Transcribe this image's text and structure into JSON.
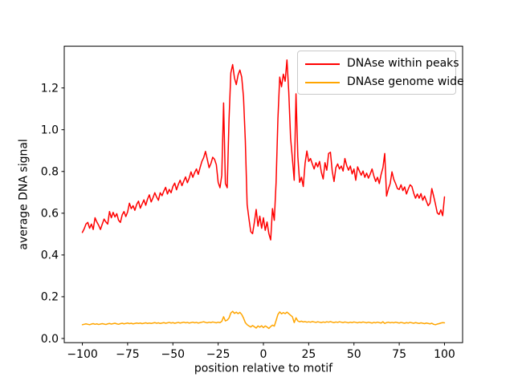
{
  "figure": {
    "background": "#ffffff"
  },
  "chart_data": {
    "type": "line",
    "xlabel": "position relative to motif",
    "ylabel": "average DNA signal",
    "xlim": [
      -110,
      110
    ],
    "ylim": [
      -0.02,
      1.4
    ],
    "grid": false,
    "xticks": [
      -100,
      -75,
      -50,
      -25,
      0,
      25,
      50,
      75,
      100
    ],
    "xtick_labels": [
      "−100",
      "−75",
      "−50",
      "−25",
      "0",
      "25",
      "50",
      "75",
      "100"
    ],
    "yticks": [
      0.0,
      0.2,
      0.4,
      0.6,
      0.8,
      1.0,
      1.2
    ],
    "ytick_labels": [
      "0.0",
      "0.2",
      "0.4",
      "0.6",
      "0.8",
      "1.0",
      "1.2"
    ],
    "legend": {
      "position": "upper right",
      "entries": [
        {
          "label": "DNAse within peaks",
          "color": "#ff0000"
        },
        {
          "label": "DNAse genome wide",
          "color": "#ffa500"
        }
      ]
    },
    "x": [
      -100,
      -99,
      -98,
      -97,
      -96,
      -95,
      -94,
      -93,
      -92,
      -91,
      -90,
      -89,
      -88,
      -87,
      -86,
      -85,
      -84,
      -83,
      -82,
      -81,
      -80,
      -79,
      -78,
      -77,
      -76,
      -75,
      -74,
      -73,
      -72,
      -71,
      -70,
      -69,
      -68,
      -67,
      -66,
      -65,
      -64,
      -63,
      -62,
      -61,
      -60,
      -59,
      -58,
      -57,
      -56,
      -55,
      -54,
      -53,
      -52,
      -51,
      -50,
      -49,
      -48,
      -47,
      -46,
      -45,
      -44,
      -43,
      -42,
      -41,
      -40,
      -39,
      -38,
      -37,
      -36,
      -35,
      -34,
      -33,
      -32,
      -31,
      -30,
      -29,
      -28,
      -27,
      -26,
      -25,
      -24,
      -23,
      -22,
      -21,
      -20,
      -19,
      -18,
      -17,
      -16,
      -15,
      -14,
      -13,
      -12,
      -11,
      -10,
      -9,
      -8,
      -7,
      -6,
      -5,
      -4,
      -3,
      -2,
      -1,
      0,
      1,
      2,
      3,
      4,
      5,
      6,
      7,
      8,
      9,
      10,
      11,
      12,
      13,
      14,
      15,
      16,
      17,
      18,
      19,
      20,
      21,
      22,
      23,
      24,
      25,
      26,
      27,
      28,
      29,
      30,
      31,
      32,
      33,
      34,
      35,
      36,
      37,
      38,
      39,
      40,
      41,
      42,
      43,
      44,
      45,
      46,
      47,
      48,
      49,
      50,
      51,
      52,
      53,
      54,
      55,
      56,
      57,
      58,
      59,
      60,
      61,
      62,
      63,
      64,
      65,
      66,
      67,
      68,
      69,
      70,
      71,
      72,
      73,
      74,
      75,
      76,
      77,
      78,
      79,
      80,
      81,
      82,
      83,
      84,
      85,
      86,
      87,
      88,
      89,
      90,
      91,
      92,
      93,
      94,
      95,
      96,
      97,
      98,
      99,
      100
    ],
    "series": [
      {
        "name": "DNAse within peaks",
        "color": "#ff0000",
        "values": [
          0.508,
          0.525,
          0.548,
          0.556,
          0.528,
          0.548,
          0.522,
          0.578,
          0.558,
          0.542,
          0.522,
          0.548,
          0.572,
          0.558,
          0.548,
          0.608,
          0.578,
          0.604,
          0.582,
          0.598,
          0.566,
          0.556,
          0.592,
          0.608,
          0.584,
          0.606,
          0.648,
          0.622,
          0.636,
          0.614,
          0.642,
          0.658,
          0.624,
          0.644,
          0.664,
          0.638,
          0.668,
          0.688,
          0.654,
          0.674,
          0.698,
          0.678,
          0.662,
          0.698,
          0.684,
          0.706,
          0.724,
          0.692,
          0.714,
          0.698,
          0.728,
          0.744,
          0.712,
          0.738,
          0.758,
          0.732,
          0.754,
          0.774,
          0.746,
          0.768,
          0.798,
          0.772,
          0.794,
          0.812,
          0.786,
          0.818,
          0.848,
          0.866,
          0.896,
          0.858,
          0.818,
          0.838,
          0.868,
          0.858,
          0.832,
          0.748,
          0.722,
          0.782,
          1.128,
          0.742,
          0.722,
          1.048,
          1.272,
          1.312,
          1.248,
          1.216,
          1.262,
          1.286,
          1.252,
          1.156,
          0.948,
          0.642,
          0.574,
          0.512,
          0.502,
          0.556,
          0.618,
          0.538,
          0.586,
          0.528,
          0.578,
          0.518,
          0.558,
          0.502,
          0.472,
          0.622,
          0.566,
          0.748,
          1.052,
          1.252,
          1.206,
          1.266,
          1.232,
          1.334,
          1.18,
          0.96,
          0.862,
          0.758,
          1.172,
          0.872,
          0.748,
          0.772,
          0.728,
          0.838,
          0.898,
          0.848,
          0.862,
          0.836,
          0.812,
          0.842,
          0.822,
          0.848,
          0.796,
          0.764,
          0.842,
          0.806,
          0.886,
          0.892,
          0.802,
          0.752,
          0.818,
          0.836,
          0.812,
          0.826,
          0.802,
          0.862,
          0.828,
          0.806,
          0.826,
          0.788,
          0.812,
          0.758,
          0.822,
          0.802,
          0.782,
          0.802,
          0.772,
          0.792,
          0.768,
          0.788,
          0.812,
          0.778,
          0.752,
          0.772,
          0.742,
          0.786,
          0.818,
          0.886,
          0.682,
          0.716,
          0.742,
          0.798,
          0.762,
          0.742,
          0.718,
          0.714,
          0.736,
          0.708,
          0.726,
          0.692,
          0.716,
          0.736,
          0.728,
          0.696,
          0.672,
          0.692,
          0.672,
          0.694,
          0.662,
          0.682,
          0.658,
          0.636,
          0.648,
          0.718,
          0.682,
          0.644,
          0.602,
          0.594,
          0.616,
          0.588,
          0.678
        ]
      },
      {
        "name": "DNAse genome wide",
        "color": "#ffa500",
        "values": [
          0.066,
          0.068,
          0.07,
          0.068,
          0.066,
          0.069,
          0.071,
          0.068,
          0.07,
          0.067,
          0.069,
          0.071,
          0.069,
          0.067,
          0.07,
          0.072,
          0.069,
          0.071,
          0.073,
          0.07,
          0.068,
          0.071,
          0.073,
          0.07,
          0.072,
          0.074,
          0.071,
          0.073,
          0.07,
          0.072,
          0.074,
          0.072,
          0.074,
          0.071,
          0.073,
          0.075,
          0.072,
          0.074,
          0.072,
          0.074,
          0.076,
          0.073,
          0.075,
          0.072,
          0.074,
          0.076,
          0.073,
          0.075,
          0.077,
          0.074,
          0.076,
          0.073,
          0.075,
          0.077,
          0.074,
          0.076,
          0.078,
          0.075,
          0.077,
          0.074,
          0.076,
          0.078,
          0.075,
          0.077,
          0.074,
          0.076,
          0.078,
          0.08,
          0.077,
          0.075,
          0.078,
          0.076,
          0.079,
          0.077,
          0.075,
          0.078,
          0.076,
          0.082,
          0.104,
          0.084,
          0.088,
          0.098,
          0.122,
          0.13,
          0.12,
          0.126,
          0.119,
          0.125,
          0.115,
          0.098,
          0.076,
          0.066,
          0.06,
          0.055,
          0.062,
          0.056,
          0.05,
          0.06,
          0.054,
          0.061,
          0.052,
          0.06,
          0.055,
          0.048,
          0.057,
          0.064,
          0.059,
          0.086,
          0.115,
          0.127,
          0.118,
          0.124,
          0.119,
          0.126,
          0.119,
          0.111,
          0.104,
          0.076,
          0.099,
          0.084,
          0.08,
          0.083,
          0.079,
          0.081,
          0.078,
          0.08,
          0.078,
          0.081,
          0.079,
          0.077,
          0.08,
          0.078,
          0.076,
          0.079,
          0.077,
          0.08,
          0.078,
          0.081,
          0.078,
          0.076,
          0.079,
          0.077,
          0.08,
          0.078,
          0.076,
          0.079,
          0.077,
          0.075,
          0.078,
          0.076,
          0.079,
          0.077,
          0.075,
          0.078,
          0.076,
          0.079,
          0.077,
          0.075,
          0.078,
          0.076,
          0.074,
          0.077,
          0.075,
          0.078,
          0.076,
          0.074,
          0.08,
          0.072,
          0.076,
          0.078,
          0.075,
          0.077,
          0.075,
          0.078,
          0.076,
          0.074,
          0.077,
          0.075,
          0.073,
          0.076,
          0.074,
          0.077,
          0.075,
          0.073,
          0.076,
          0.074,
          0.072,
          0.075,
          0.073,
          0.071,
          0.074,
          0.072,
          0.07,
          0.073,
          0.068,
          0.066,
          0.069,
          0.071,
          0.074,
          0.076,
          0.075
        ]
      }
    ]
  }
}
